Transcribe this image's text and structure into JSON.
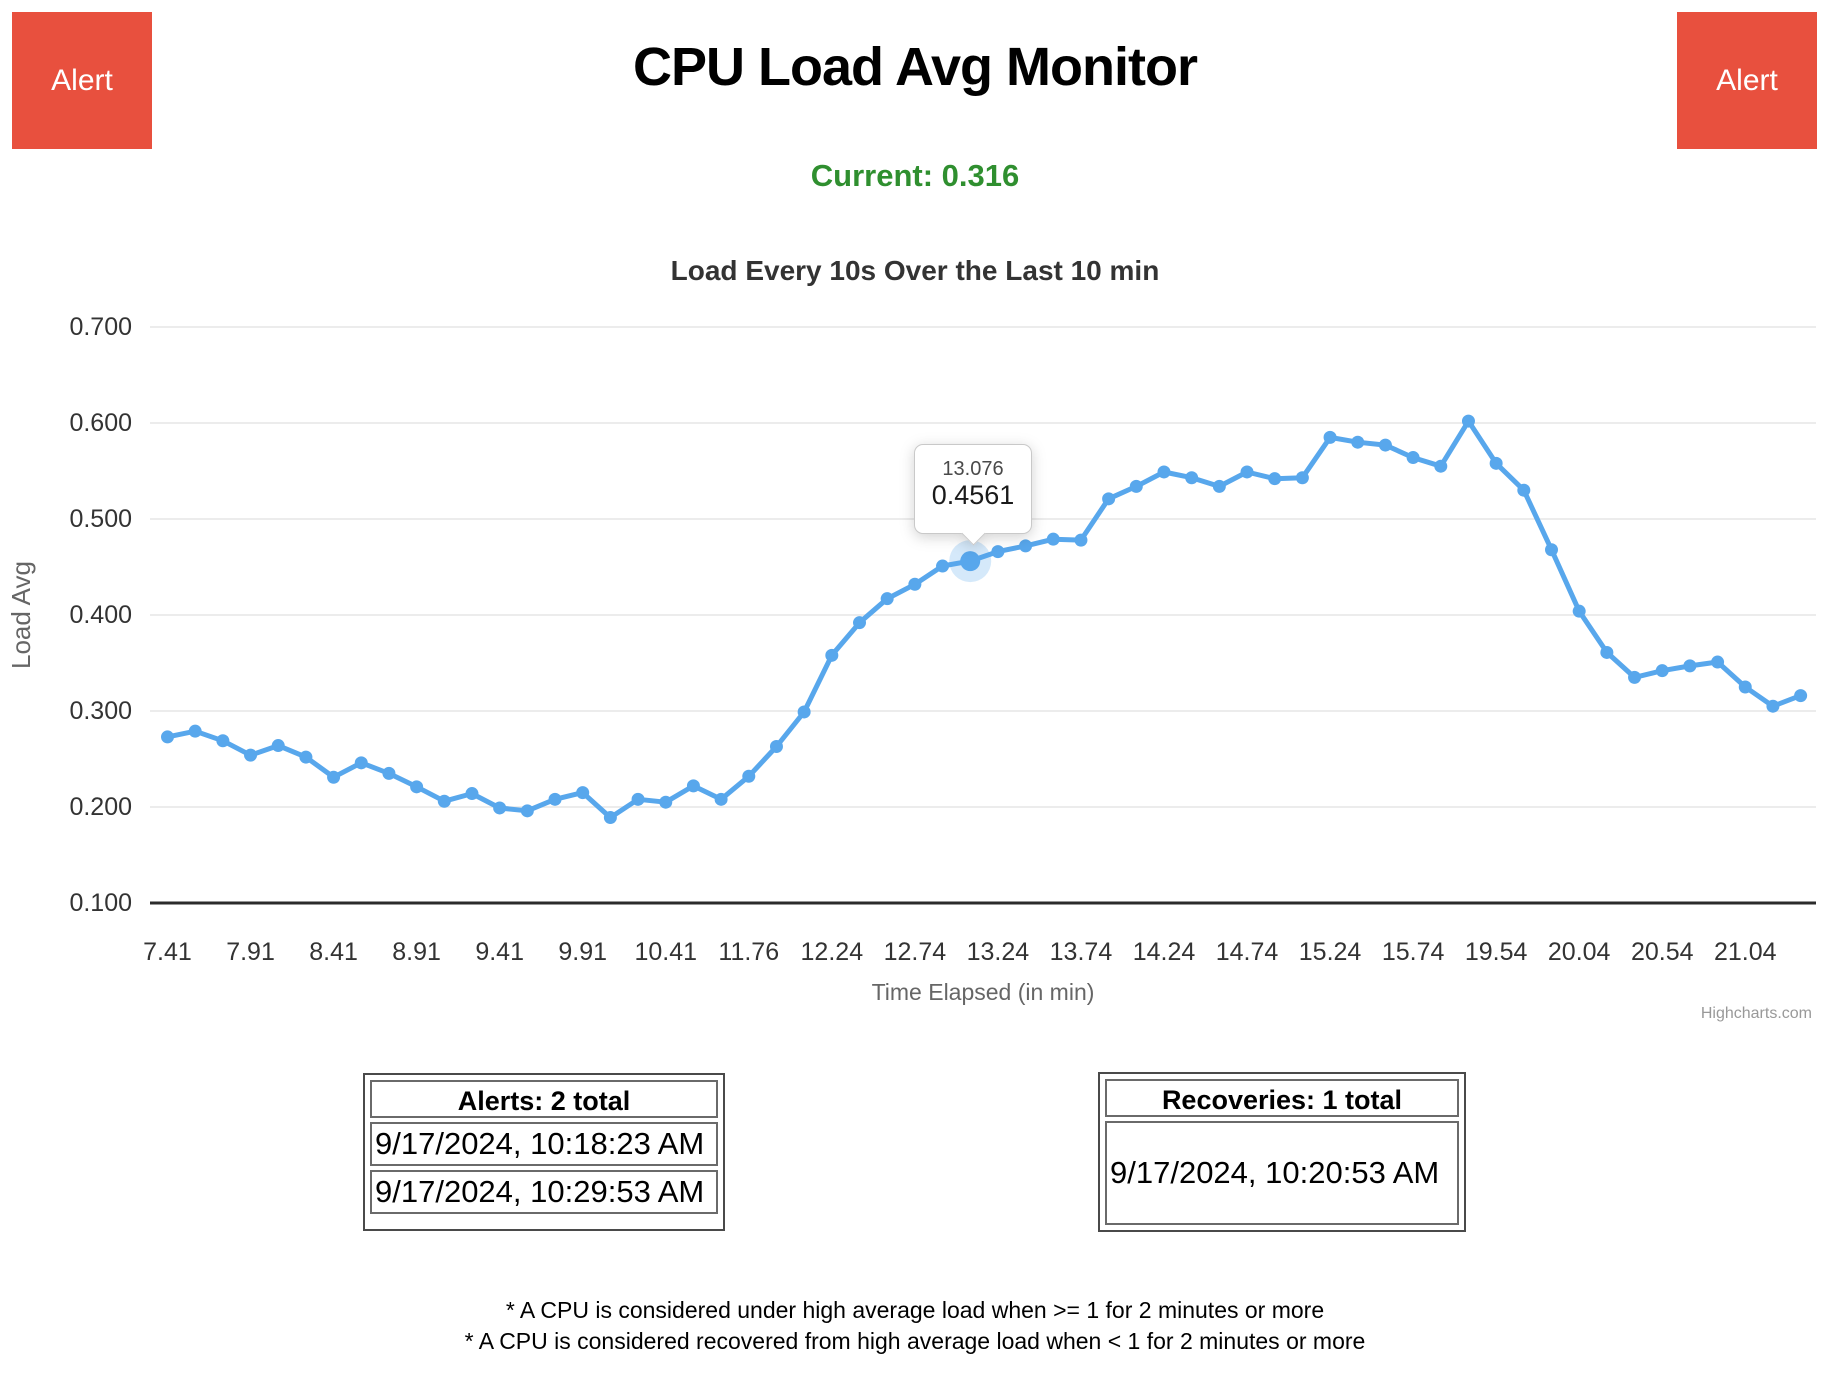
{
  "header": {
    "alert_label": "Alert",
    "title": "CPU Load Avg Monitor",
    "current": "Current: 0.316"
  },
  "chart_data": {
    "type": "line",
    "title": "Load Every 10s Over the Last 10 min",
    "xlabel": "Time Elapsed (in min)",
    "ylabel": "Load Avg",
    "ylim": [
      0.1,
      0.7
    ],
    "grid": true,
    "legend": "none",
    "yticks": [
      "0.700",
      "0.600",
      "0.500",
      "0.400",
      "0.300",
      "0.200",
      "0.100"
    ],
    "xticklabels": [
      "7.41",
      "7.91",
      "8.41",
      "8.91",
      "9.41",
      "9.91",
      "10.41",
      "11.76",
      "12.24",
      "12.74",
      "13.24",
      "13.74",
      "14.24",
      "14.74",
      "15.24",
      "15.74",
      "19.54",
      "20.04",
      "20.54",
      "21.04"
    ],
    "x": [
      7.41,
      7.577,
      7.743,
      7.91,
      8.077,
      8.243,
      8.41,
      8.577,
      8.743,
      8.91,
      9.077,
      9.243,
      9.41,
      9.577,
      9.743,
      9.91,
      10.077,
      10.243,
      10.41,
      10.86,
      11.31,
      11.76,
      11.92,
      12.08,
      12.24,
      12.407,
      12.573,
      12.74,
      12.908,
      13.076,
      13.24,
      13.407,
      13.573,
      13.74,
      13.907,
      14.073,
      14.24,
      14.407,
      14.573,
      14.74,
      14.907,
      15.073,
      15.24,
      15.407,
      15.573,
      15.74,
      17.007,
      18.273,
      19.54,
      19.707,
      19.873,
      20.04,
      20.207,
      20.373,
      20.54,
      20.707,
      20.873,
      21.04,
      21.207,
      21.373
    ],
    "values": [
      0.273,
      0.279,
      0.269,
      0.254,
      0.264,
      0.252,
      0.231,
      0.246,
      0.235,
      0.221,
      0.206,
      0.214,
      0.199,
      0.196,
      0.208,
      0.215,
      0.189,
      0.208,
      0.205,
      0.222,
      0.208,
      0.232,
      0.263,
      0.299,
      0.358,
      0.392,
      0.417,
      0.432,
      0.451,
      0.4561,
      0.466,
      0.472,
      0.479,
      0.478,
      0.521,
      0.534,
      0.549,
      0.543,
      0.534,
      0.549,
      0.542,
      0.543,
      0.585,
      0.58,
      0.577,
      0.564,
      0.555,
      0.602,
      0.558,
      0.53,
      0.468,
      0.404,
      0.361,
      0.335,
      0.342,
      0.347,
      0.351,
      0.325,
      0.305,
      0.316
    ],
    "tooltip": {
      "point_index": 29,
      "x_label": "13.076",
      "value_label": "0.4561"
    },
    "line_color": "#58a7ec",
    "grid_color": "#e6e6e6",
    "axis_line_color": "#2b2b2b",
    "label_color": "#333333",
    "axis_title_color": "#666666",
    "credit": "Highcharts.com",
    "credit_color": "#999999"
  },
  "alerts_box": {
    "header": "Alerts: 2 total",
    "rows": [
      "9/17/2024, 10:18:23 AM",
      "9/17/2024, 10:29:53 AM"
    ]
  },
  "recoveries_box": {
    "header": "Recoveries: 1 total",
    "rows": [
      "9/17/2024, 10:20:53 AM"
    ]
  },
  "footnotes": [
    "* A CPU is considered under high average load when >= 1 for 2 minutes or more",
    "* A CPU is considered recovered from high average load when < 1 for 2 minutes or more"
  ],
  "colors": {
    "alert_red": "#e8503e",
    "current_green": "#2f8f2f",
    "series_blue": "#58a7ec"
  }
}
